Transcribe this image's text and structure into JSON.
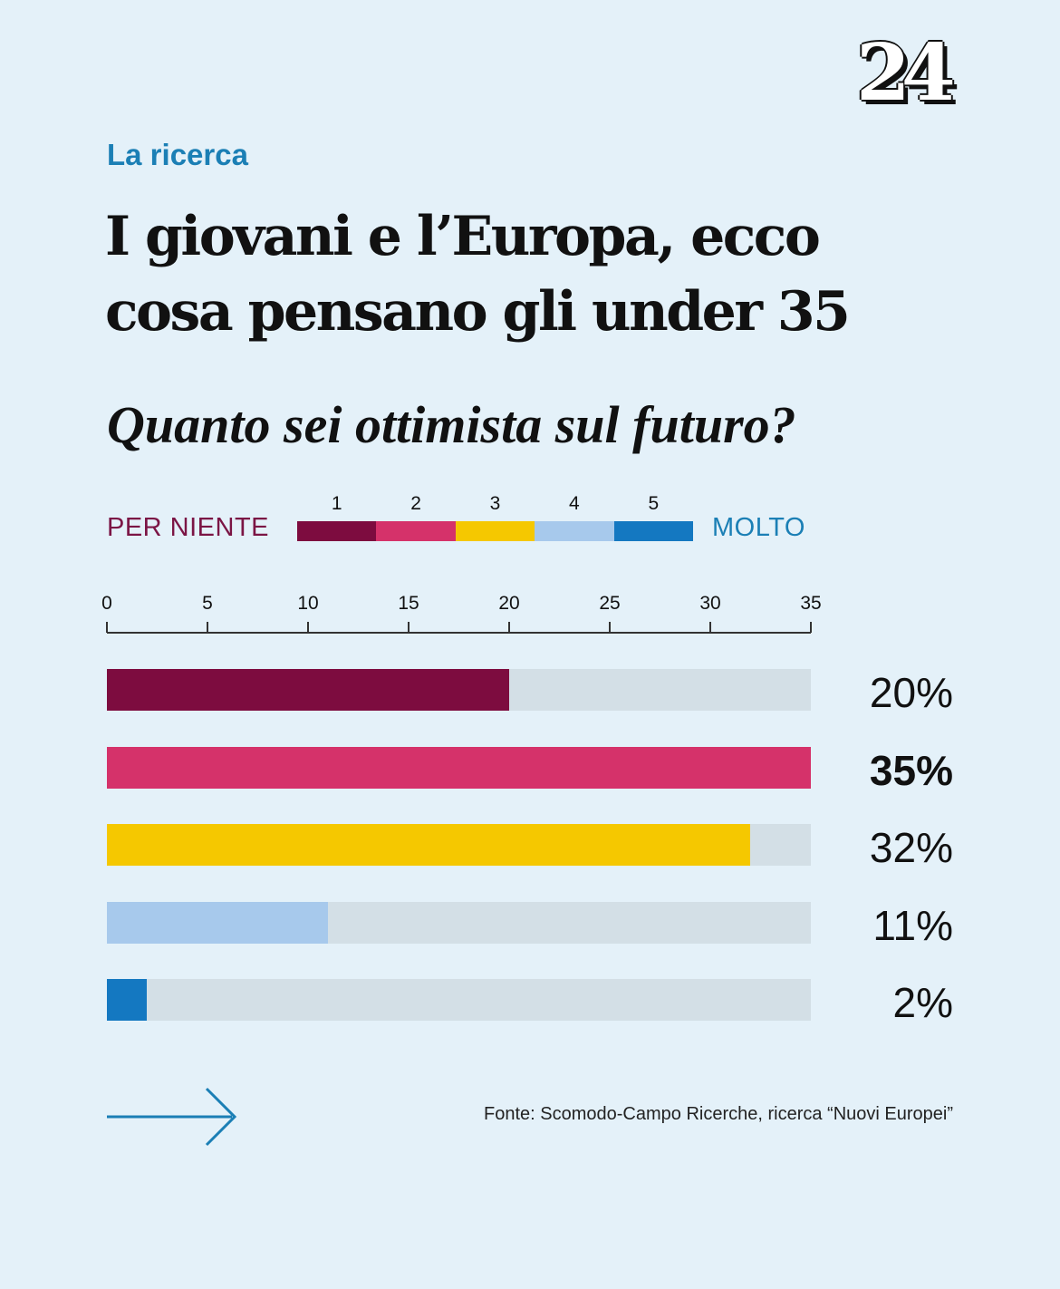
{
  "logo": {
    "text": "24"
  },
  "kicker": "La ricerca",
  "title_line1": "I giovani e l’Europa, ecco",
  "title_line2": "cosa pensano gli under 35",
  "question": "Quanto sei ottimista sul futuro?",
  "legend": {
    "left_label": "PER NIENTE",
    "right_label": "MOLTO",
    "items": [
      {
        "num": "1",
        "color": "#7d0c3f"
      },
      {
        "num": "2",
        "color": "#d5326a"
      },
      {
        "num": "3",
        "color": "#f5c800"
      },
      {
        "num": "4",
        "color": "#a7c9ec"
      },
      {
        "num": "5",
        "color": "#1478c1"
      }
    ]
  },
  "source": "Fonte: Scomodo-Campo Ricerche, ricerca “Nuovi Europei”",
  "chart_data": {
    "type": "bar",
    "orientation": "horizontal",
    "title": "Quanto sei ottimista sul futuro?",
    "xlim": [
      0,
      35
    ],
    "xticks": [
      "0",
      "5",
      "10",
      "15",
      "20",
      "25",
      "30",
      "35"
    ],
    "categories": [
      "1",
      "2",
      "3",
      "4",
      "5"
    ],
    "values": [
      20,
      35,
      32,
      11,
      2
    ],
    "labels": [
      "20%",
      "35%",
      "32%",
      "11%",
      "2%"
    ],
    "colors": [
      "#7d0c3f",
      "#d5326a",
      "#f5c800",
      "#a7c9ec",
      "#1478c1"
    ],
    "highlight_index": 1,
    "unit": "%"
  }
}
